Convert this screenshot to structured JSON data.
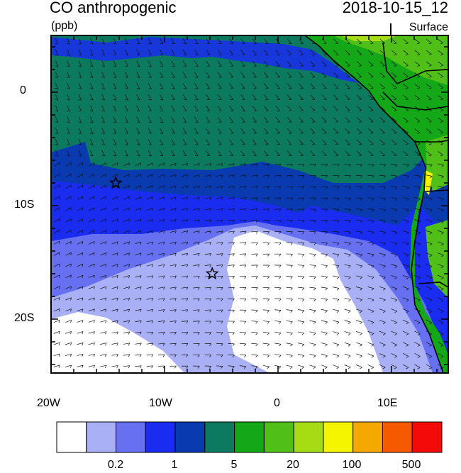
{
  "header": {
    "variable": "CO anthropogenic",
    "units": "(ppb)",
    "datetime": "2018-10-15_12",
    "level": "Surface"
  },
  "axes": {
    "lon_labels": [
      "20W",
      "10W",
      "0",
      "10E"
    ],
    "lat_labels": [
      "0",
      "10S",
      "20S"
    ]
  },
  "colorbar": {
    "labels": [
      "0.2",
      "1",
      "5",
      "20",
      "100",
      "500"
    ],
    "colors": [
      "#ffffff",
      "#aab0f5",
      "#6670f0",
      "#1a2cf0",
      "#0a3ab0",
      "#0c7a5e",
      "#14a818",
      "#50c018",
      "#a6dc14",
      "#f5f500",
      "#f5a800",
      "#f55a00",
      "#f50a0a"
    ]
  },
  "markers": {
    "stars": [
      {
        "lon": -14.3,
        "lat": -8.0
      },
      {
        "lon": -5.8,
        "lat": -16.0
      }
    ]
  }
}
